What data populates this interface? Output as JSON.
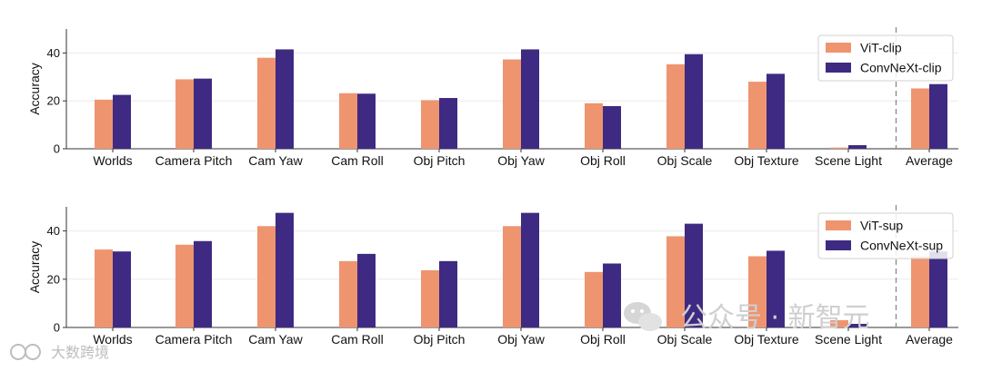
{
  "watermark": {
    "main": "公众号 · 新智元",
    "corner": "大数跨境"
  },
  "chart_data": [
    {
      "type": "bar",
      "ylabel": "Accuracy",
      "ylim": [
        0,
        50
      ],
      "yticks": [
        0,
        20,
        40
      ],
      "grid": true,
      "legend_position": "top-right",
      "categories": [
        "Worlds",
        "Camera Pitch",
        "Cam Yaw",
        "Cam Roll",
        "Obj Pitch",
        "Obj Yaw",
        "Obj Roll",
        "Obj Scale",
        "Obj Texture",
        "Scene Light",
        "Average"
      ],
      "separator_before": "Average",
      "series": [
        {
          "name": "ViT-clip",
          "color": "#EE9570",
          "values": [
            20.5,
            29.0,
            38.0,
            23.2,
            20.3,
            37.3,
            19.0,
            35.3,
            28.0,
            0.5,
            25.2
          ]
        },
        {
          "name": "ConvNeXt-clip",
          "color": "#3E2A82",
          "values": [
            22.5,
            29.3,
            41.5,
            23.0,
            21.2,
            41.5,
            17.8,
            39.5,
            31.3,
            1.5,
            27.0
          ]
        }
      ]
    },
    {
      "type": "bar",
      "ylabel": "Accuracy",
      "ylim": [
        0,
        50
      ],
      "yticks": [
        0,
        20,
        40
      ],
      "grid": true,
      "legend_position": "top-right",
      "categories": [
        "Worlds",
        "Camera Pitch",
        "Cam Yaw",
        "Cam Roll",
        "Obj Pitch",
        "Obj Yaw",
        "Obj Roll",
        "Obj Scale",
        "Obj Texture",
        "Scene Light",
        "Average"
      ],
      "separator_before": "Average",
      "series": [
        {
          "name": "ViT-sup",
          "color": "#EE9570",
          "values": [
            32.3,
            34.3,
            42.0,
            27.5,
            23.7,
            42.0,
            23.0,
            37.8,
            29.5,
            3.0,
            29.5
          ]
        },
        {
          "name": "ConvNeXt-sup",
          "color": "#3E2A82",
          "values": [
            31.5,
            35.8,
            47.5,
            30.5,
            27.5,
            47.5,
            26.5,
            43.0,
            31.8,
            1.5,
            31.5
          ]
        }
      ]
    }
  ]
}
